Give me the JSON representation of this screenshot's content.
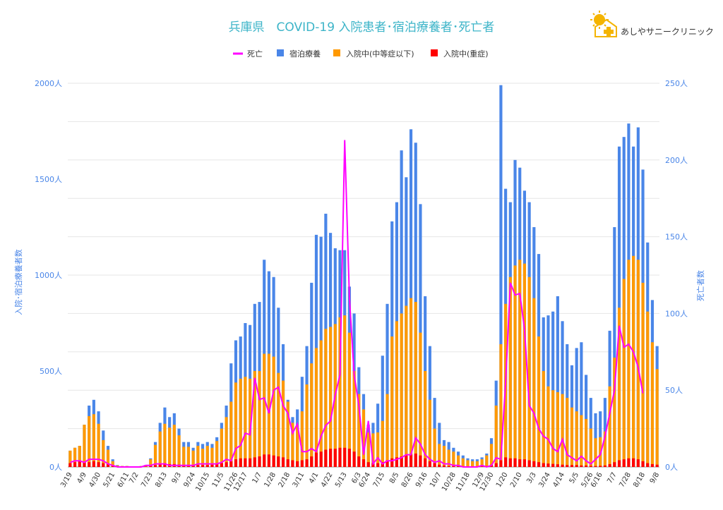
{
  "logo": {
    "text": "あしやサニークリニック"
  },
  "colors": {
    "death": "#ff00ff",
    "hotel": "#4a86e8",
    "moderate": "#ff9900",
    "severe": "#ff0000",
    "title": "#3cb4c8",
    "axis": "#4a86e8"
  },
  "chart_data": {
    "type": "bar",
    "title": "兵庫県　COVID-19 入院患者･宿泊療養者･死亡者",
    "legend": {
      "position": "top",
      "items": [
        {
          "key": "death",
          "label": "死亡"
        },
        {
          "key": "hotel",
          "label": "宿泊療養"
        },
        {
          "key": "moderate",
          "label": "入院中(中等症以下)"
        },
        {
          "key": "severe",
          "label": "入院中(重症)"
        }
      ]
    },
    "stacked": true,
    "ylabel_left": "入院･宿泊療養者数",
    "ylabel_right": "死亡者数",
    "ylim_left": [
      0,
      2000
    ],
    "ylim_right": [
      0,
      250
    ],
    "yticks_left": [
      "0人",
      "500人",
      "1000人",
      "1500人",
      "2000人"
    ],
    "yticks_right": [
      "0人",
      "50人",
      "100人",
      "150人",
      "200人",
      "250人"
    ],
    "grid": true,
    "x_labels": [
      "3/19",
      "4/9",
      "4/30",
      "5/21",
      "6/11",
      "7/2",
      "7/23",
      "8/13",
      "9/3",
      "9/24",
      "10/15",
      "11/5",
      "11/26",
      "12/17",
      "1/7",
      "1/28",
      "2/18",
      "3/11",
      "4/1",
      "4/22",
      "5/13",
      "6/3",
      "6/24",
      "7/15",
      "8/5",
      "8/26",
      "9/16",
      "10/7",
      "10/28",
      "11/18",
      "12/9",
      "12/30",
      "1/20",
      "2/10",
      "3/3",
      "3/24",
      "4/14",
      "5/5",
      "5/26",
      "6/16",
      "7/7",
      "7/28",
      "8/18",
      "9/8"
    ],
    "series_total": [
      85,
      100,
      110,
      220,
      320,
      350,
      290,
      190,
      110,
      40,
      10,
      5,
      5,
      2,
      2,
      5,
      10,
      45,
      130,
      230,
      310,
      260,
      280,
      200,
      130,
      130,
      100,
      130,
      120,
      130,
      120,
      155,
      230,
      320,
      540,
      660,
      680,
      750,
      740,
      850,
      860,
      1080,
      1020,
      990,
      830,
      640,
      350,
      260,
      300,
      470,
      630,
      960,
      1210,
      1200,
      1320,
      1220,
      1140,
      1130,
      1130,
      940,
      800,
      520,
      380,
      220,
      230,
      330,
      580,
      850,
      1280,
      1380,
      1650,
      1510,
      1760,
      1690,
      1370,
      890,
      630,
      360,
      230,
      140,
      130,
      100,
      80,
      60,
      45,
      40,
      40,
      50,
      70,
      150,
      450,
      1990,
      1450,
      1380,
      1600,
      1560,
      1440,
      1380,
      1250,
      1110,
      780,
      790,
      810,
      890,
      760,
      640,
      530,
      620,
      650,
      480,
      360,
      280,
      290,
      360,
      710,
      1250,
      1670,
      1720,
      1790,
      1670,
      1770,
      1550,
      1170,
      870,
      630
    ],
    "series_moderate": [
      85,
      100,
      110,
      220,
      265,
      275,
      225,
      140,
      90,
      30,
      8,
      5,
      5,
      2,
      2,
      5,
      10,
      40,
      115,
      185,
      225,
      205,
      220,
      165,
      105,
      105,
      85,
      110,
      95,
      110,
      100,
      135,
      200,
      260,
      340,
      440,
      460,
      470,
      460,
      500,
      500,
      590,
      590,
      575,
      490,
      450,
      340,
      230,
      220,
      290,
      430,
      540,
      620,
      660,
      720,
      730,
      745,
      780,
      790,
      700,
      500,
      380,
      300,
      180,
      175,
      180,
      240,
      380,
      680,
      760,
      800,
      840,
      880,
      860,
      700,
      500,
      350,
      200,
      120,
      110,
      90,
      80,
      60,
      45,
      35,
      30,
      30,
      40,
      60,
      120,
      320,
      640,
      850,
      990,
      1050,
      1080,
      1060,
      990,
      880,
      680,
      500,
      420,
      400,
      390,
      380,
      360,
      310,
      290,
      270,
      250,
      200,
      150,
      155,
      185,
      420,
      570,
      830,
      980,
      1080,
      1100,
      1080,
      960,
      810,
      650,
      510
    ],
    "series_severe": [
      20,
      25,
      30,
      25,
      25,
      30,
      25,
      20,
      15,
      5,
      3,
      3,
      2,
      1,
      1,
      2,
      2,
      8,
      10,
      15,
      20,
      15,
      15,
      12,
      10,
      10,
      10,
      10,
      10,
      10,
      12,
      15,
      20,
      25,
      30,
      40,
      45,
      45,
      45,
      50,
      55,
      65,
      65,
      60,
      55,
      50,
      40,
      35,
      30,
      35,
      40,
      55,
      75,
      80,
      90,
      95,
      95,
      100,
      100,
      95,
      80,
      55,
      40,
      25,
      20,
      20,
      25,
      35,
      45,
      50,
      55,
      60,
      65,
      70,
      60,
      45,
      30,
      20,
      12,
      8,
      5,
      5,
      4,
      3,
      3,
      3,
      3,
      3,
      5,
      10,
      20,
      35,
      50,
      45,
      45,
      40,
      40,
      35,
      30,
      25,
      20,
      18,
      16,
      14,
      12,
      10,
      10,
      10,
      8,
      8,
      6,
      5,
      6,
      8,
      15,
      25,
      35,
      40,
      45,
      45,
      40,
      30,
      20,
      15,
      12
    ],
    "series_death": [
      3,
      4,
      4,
      3,
      5,
      5,
      5,
      4,
      2,
      1,
      0,
      0,
      0,
      0,
      0,
      0,
      1,
      1,
      2,
      2,
      2,
      1,
      1,
      1,
      1,
      1,
      1,
      2,
      2,
      2,
      2,
      2,
      3,
      5,
      4,
      12,
      14,
      22,
      21,
      58,
      44,
      45,
      35,
      50,
      52,
      40,
      35,
      22,
      28,
      10,
      10,
      12,
      10,
      20,
      27,
      30,
      47,
      60,
      213,
      110,
      60,
      40,
      8,
      30,
      2,
      6,
      2,
      4,
      4,
      5,
      6,
      8,
      8,
      19,
      15,
      8,
      5,
      3,
      4,
      2,
      2,
      1,
      1,
      0,
      0,
      0,
      0,
      1,
      0,
      1,
      6,
      5,
      55,
      120,
      112,
      113,
      90,
      40,
      35,
      25,
      20,
      18,
      12,
      10,
      18,
      8,
      6,
      4,
      7,
      4,
      2,
      5,
      8,
      20,
      35,
      50,
      92,
      78,
      80,
      75,
      65,
      48
    ]
  }
}
